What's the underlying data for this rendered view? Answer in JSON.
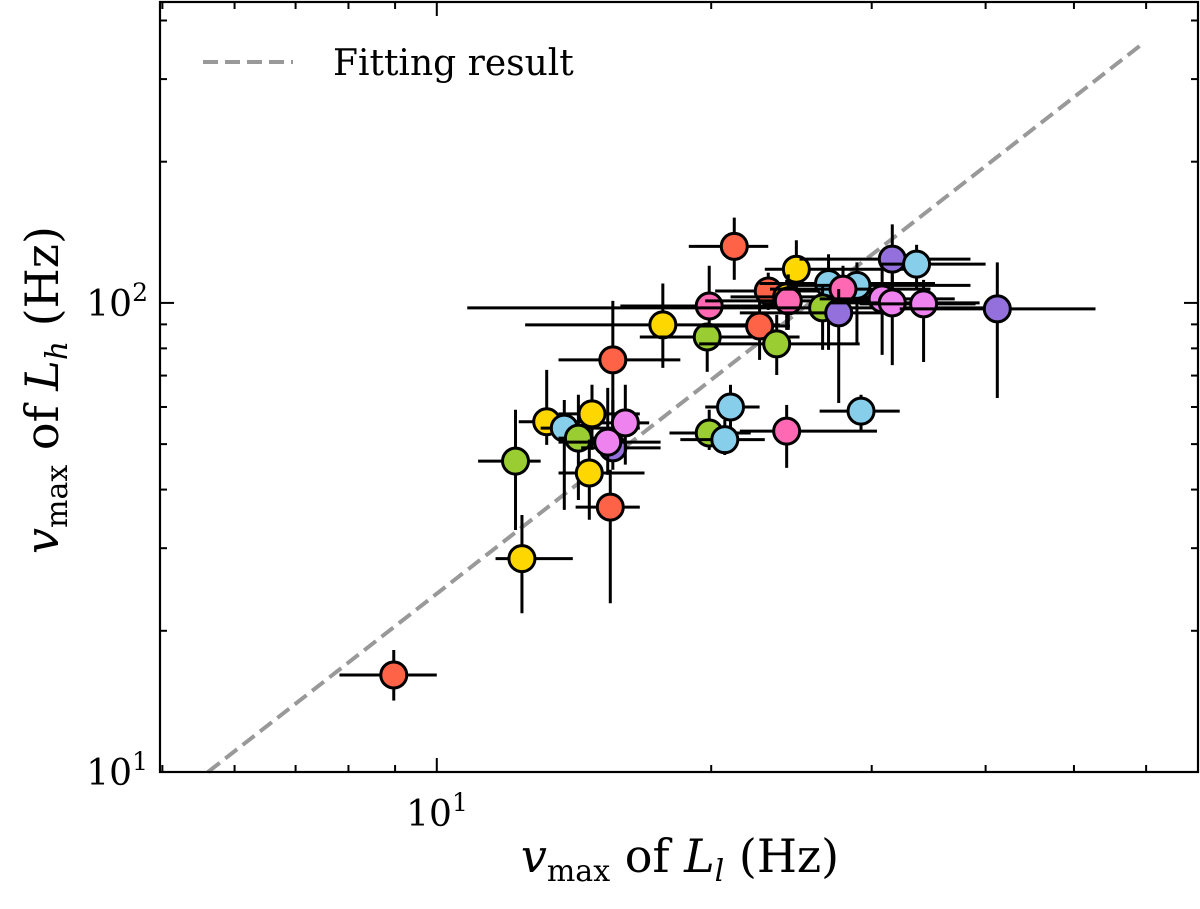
{
  "chart_data": {
    "type": "scatter",
    "x_scale": "log",
    "y_scale": "log",
    "xlim": [
      4.97,
      68.4
    ],
    "ylim": [
      10,
      438
    ],
    "grid": false,
    "xlabel": {
      "sym": "v",
      "sub": "max",
      "mid": " of ",
      "sym2": "L",
      "sub2": "l",
      "unit": " (Hz)"
    },
    "ylabel": {
      "sym": "v",
      "sub": "max",
      "mid": " of ",
      "sym2": "L",
      "sub2": "h",
      "unit": " (Hz)"
    },
    "x_ticks": [
      {
        "value": 10,
        "base": "10",
        "exp": "1"
      }
    ],
    "y_ticks": [
      {
        "value": 10,
        "base": "10",
        "exp": "1"
      },
      {
        "value": 100,
        "base": "10",
        "exp": "2"
      }
    ],
    "legend": {
      "placement": "top-left",
      "entries": [
        {
          "label": "Fitting result",
          "style": "dashed",
          "color": "#999999"
        }
      ]
    },
    "fit_line": {
      "x": [
        5.61,
        59.8
      ],
      "y": [
        10,
        360
      ],
      "color": "#999999"
    },
    "colors": {
      "red": "#FF6347",
      "yellow": "#FFD700",
      "green": "#9ACD32",
      "skyblue": "#87CEEB",
      "hotpink": "#FF69B4",
      "violet": "#EE82EE",
      "purple": "#9370DB"
    },
    "points": [
      {
        "c": "red",
        "x": 21.2,
        "xerr": [
          18.9,
          23.1
        ],
        "y": 132,
        "yerr": [
          112,
          152
        ]
      },
      {
        "c": "yellow",
        "x": 24.8,
        "xerr": [
          22.9,
          32.6
        ],
        "y": 118,
        "yerr": [
          101,
          136
        ]
      },
      {
        "c": "hotpink",
        "x": 19.9,
        "xerr": [
          15.9,
          24.4
        ],
        "y": 98.5,
        "yerr": [
          81.4,
          120
        ]
      },
      {
        "c": "yellow",
        "x": 17.7,
        "xerr": [
          12.5,
          23.8
        ],
        "y": 89.8,
        "yerr": [
          72.7,
          110
        ]
      },
      {
        "c": "green",
        "x": 19.8,
        "xerr": [
          16.7,
          25.0
        ],
        "y": 84.6,
        "yerr": [
          71.3,
          90.6
        ]
      },
      {
        "c": "red",
        "x": 15.6,
        "xerr": [
          13.6,
          18.5
        ],
        "y": 75.6,
        "yerr": [
          56.3,
          101
        ]
      },
      {
        "c": "red",
        "x": 22.6,
        "xerr": [
          19.4,
          24.4
        ],
        "y": 89.3,
        "yerr": [
          75.6,
          101
        ]
      },
      {
        "c": "green",
        "x": 23.6,
        "xerr": [
          19.4,
          29.1
        ],
        "y": 81.8,
        "yerr": [
          70.2,
          94.3
        ]
      },
      {
        "c": "red",
        "x": 23.1,
        "xerr": [
          20.2,
          28.4
        ],
        "y": 106,
        "yerr": [
          96.6,
          116
        ]
      },
      {
        "c": "yellow",
        "x": 24.2,
        "xerr": [
          21.0,
          32.2
        ],
        "y": 103,
        "yerr": [
          87.6,
          112
        ]
      },
      {
        "c": "hotpink",
        "x": 24.3,
        "xerr": [
          19.7,
          32.2
        ],
        "y": 101,
        "yerr": [
          87.6,
          115
        ]
      },
      {
        "c": "skyblue",
        "x": 26.9,
        "xerr": [
          22.6,
          35.2
        ],
        "y": 110,
        "yerr": [
          79.4,
          127
        ]
      },
      {
        "c": "skyblue",
        "x": 28.9,
        "xerr": [
          24.4,
          38.5
        ],
        "y": 109,
        "yerr": [
          81.4,
          122
        ]
      },
      {
        "c": "hotpink",
        "x": 27.9,
        "xerr": [
          23.2,
          34.8
        ],
        "y": 107,
        "yerr": [
          89.8,
          120
        ]
      },
      {
        "c": "purple",
        "x": 31.6,
        "xerr": [
          25.0,
          38.5
        ],
        "y": 124,
        "yerr": [
          107,
          147
        ]
      },
      {
        "c": "skyblue",
        "x": 33.6,
        "xerr": [
          30.6,
          40.0
        ],
        "y": 121,
        "yerr": [
          107,
          133
        ]
      },
      {
        "c": "green",
        "x": 26.5,
        "xerr": [
          10.8,
          40.5
        ],
        "y": 97.6,
        "yerr": [
          79.4,
          109
        ]
      },
      {
        "c": "purple",
        "x": 27.6,
        "xerr": [
          21.5,
          31.3
        ],
        "y": 95.2,
        "yerr": [
          61.2,
          107
        ]
      },
      {
        "c": "violet",
        "x": 30.8,
        "xerr": [
          26.3,
          37.0
        ],
        "y": 102,
        "yerr": [
          77.5,
          118
        ]
      },
      {
        "c": "violet",
        "x": 31.6,
        "xerr": [
          27.0,
          39.4
        ],
        "y": 100,
        "yerr": [
          73.7,
          115
        ]
      },
      {
        "c": "violet",
        "x": 34.2,
        "xerr": [
          29.1,
          39.0
        ],
        "y": 99.5,
        "yerr": [
          74.8,
          112
        ]
      },
      {
        "c": "purple",
        "x": 41.2,
        "xerr": [
          32.2,
          52.8
        ],
        "y": 97.1,
        "yerr": [
          62.7,
          122
        ]
      },
      {
        "c": "skyblue",
        "x": 29.2,
        "xerr": [
          26.3,
          32.2
        ],
        "y": 58.8,
        "yerr": [
          53.6,
          63.7
        ]
      },
      {
        "c": "hotpink",
        "x": 24.2,
        "xerr": [
          21.5,
          30.4
        ],
        "y": 53.3,
        "yerr": [
          44.5,
          60.6
        ]
      },
      {
        "c": "skyblue",
        "x": 21.0,
        "xerr": [
          19.7,
          22.6
        ],
        "y": 60.0,
        "yerr": [
          49.8,
          66.9
        ]
      },
      {
        "c": "green",
        "x": 19.9,
        "xerr": [
          18.0,
          22.1
        ],
        "y": 52.8,
        "yerr": [
          48.6,
          59.2
        ]
      },
      {
        "c": "skyblue",
        "x": 20.7,
        "xerr": [
          18.5,
          22.9
        ],
        "y": 51.1,
        "yerr": [
          47.4,
          56.3
        ]
      },
      {
        "c": "yellow",
        "x": 13.2,
        "xerr": [
          12.3,
          15.1
        ],
        "y": 55.8,
        "yerr": [
          49.8,
          72.0
        ]
      },
      {
        "c": "skyblue",
        "x": 13.8,
        "xerr": [
          13.0,
          16.7
        ],
        "y": 54.1,
        "yerr": [
          36.2,
          62.1
        ]
      },
      {
        "c": "green",
        "x": 14.3,
        "xerr": [
          13.6,
          15.9
        ],
        "y": 51.5,
        "yerr": [
          38.0,
          63.7
        ]
      },
      {
        "c": "yellow",
        "x": 14.8,
        "xerr": [
          13.6,
          16.7
        ],
        "y": 58.0,
        "yerr": [
          48.6,
          66.9
        ]
      },
      {
        "c": "purple",
        "x": 15.6,
        "xerr": [
          14.4,
          17.6
        ],
        "y": 49.1,
        "yerr": [
          44.1,
          62.1
        ]
      },
      {
        "c": "violet",
        "x": 16.1,
        "xerr": [
          15.1,
          17.1
        ],
        "y": 55.5,
        "yerr": [
          45.2,
          66.9
        ]
      },
      {
        "c": "violet",
        "x": 15.4,
        "xerr": [
          13.6,
          17.6
        ],
        "y": 50.5,
        "yerr": [
          43.0,
          65.9
        ]
      },
      {
        "c": "green",
        "x": 12.2,
        "xerr": [
          11.1,
          13.0
        ],
        "y": 46.0,
        "yerr": [
          32.8,
          59.2
        ]
      },
      {
        "c": "yellow",
        "x": 14.7,
        "xerr": [
          13.6,
          16.9
        ],
        "y": 43.4,
        "yerr": [
          34.5,
          51.1
        ]
      },
      {
        "c": "red",
        "x": 15.5,
        "xerr": [
          14.2,
          16.7
        ],
        "y": 36.7,
        "yerr": [
          22.9,
          44.1
        ]
      },
      {
        "c": "yellow",
        "x": 12.4,
        "xerr": [
          11.6,
          14.1
        ],
        "y": 28.5,
        "yerr": [
          21.8,
          35.3
        ]
      },
      {
        "c": "red",
        "x": 8.97,
        "xerr": [
          7.82,
          10.0
        ],
        "y": 16.1,
        "yerr": [
          14.2,
          18.2
        ]
      }
    ]
  }
}
